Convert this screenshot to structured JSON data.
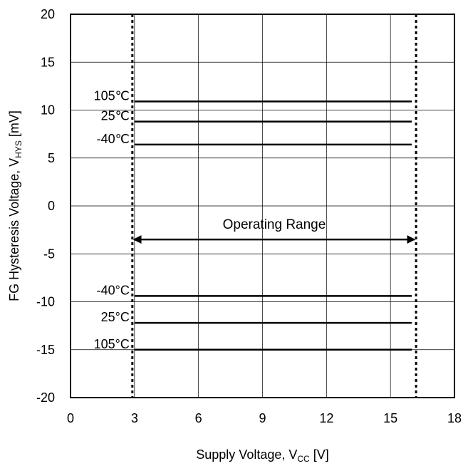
{
  "chart_data": {
    "type": "line",
    "title": "",
    "xlabel": {
      "text": "Supply Voltage, V",
      "sub": "CC",
      "unit": " [V]"
    },
    "ylabel": {
      "text": "FG Hysteresis Voltage, V",
      "sub": "HYS",
      "unit": " [mV]"
    },
    "xlim": [
      0,
      18
    ],
    "ylim": [
      -20,
      20
    ],
    "xticks": [
      0,
      3,
      6,
      9,
      12,
      15,
      18
    ],
    "yticks": [
      20,
      15,
      10,
      5,
      0,
      -5,
      -10,
      -15,
      -20
    ],
    "grid": true,
    "series": [
      {
        "name": "105℃",
        "x": [
          3,
          16
        ],
        "y": [
          10.9,
          10.9
        ]
      },
      {
        "name": "25℃",
        "x": [
          3,
          16
        ],
        "y": [
          8.8,
          8.8
        ]
      },
      {
        "name": "-40℃",
        "x": [
          3,
          16
        ],
        "y": [
          6.4,
          6.4
        ]
      },
      {
        "name": "-40°C",
        "x": [
          3,
          16
        ],
        "y": [
          -9.4,
          -9.4
        ]
      },
      {
        "name": "25°C",
        "x": [
          3,
          16
        ],
        "y": [
          -12.2,
          -12.2
        ]
      },
      {
        "name": "105°C",
        "x": [
          3,
          16
        ],
        "y": [
          -15.0,
          -15.0
        ]
      }
    ],
    "annotations": {
      "range_label": "Operating Range",
      "range_x": [
        2.9,
        16.2
      ],
      "range_y": -3.5,
      "limit_lines_x": [
        2.9,
        16.2
      ]
    }
  }
}
